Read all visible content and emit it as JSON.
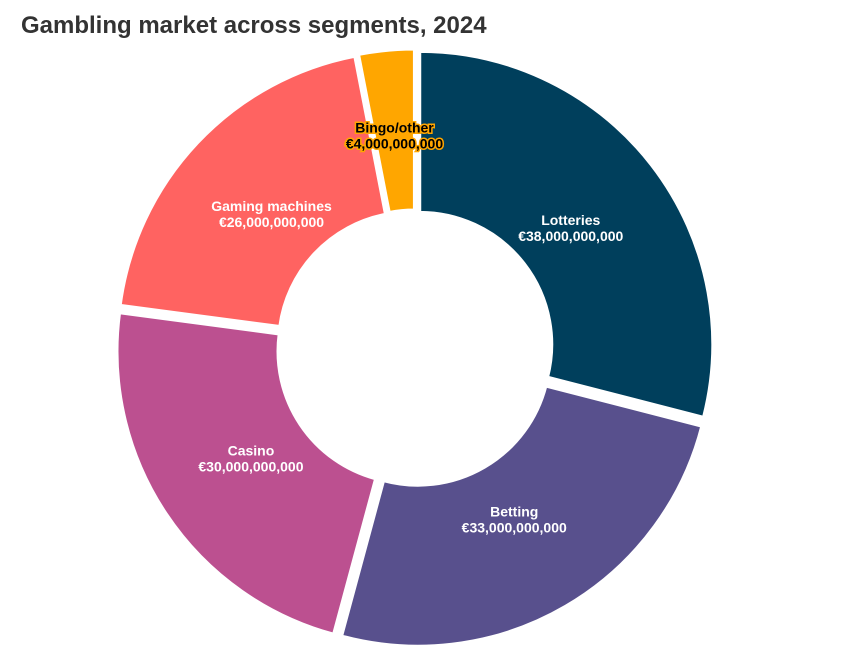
{
  "chart_data": {
    "type": "pie",
    "title": "Gambling market across segments, 2024",
    "donut": true,
    "categories": [
      "Lotteries",
      "Betting",
      "Casino",
      "Gaming machines",
      "Bingo/other"
    ],
    "values": [
      38000000000,
      33000000000,
      30000000000,
      26000000000,
      4000000000
    ],
    "value_labels": [
      "€38,000,000,000",
      "€33,000,000,000",
      "€30,000,000,000",
      "€26,000,000,000",
      "€4,000,000,000"
    ],
    "colors": [
      "#003f5c",
      "#58508d",
      "#bc5090",
      "#ff6361",
      "#ffa600"
    ],
    "label_colors": [
      "#ffffff",
      "#ffffff",
      "#ffffff",
      "#ffffff",
      "#000000"
    ],
    "legend": "none"
  }
}
